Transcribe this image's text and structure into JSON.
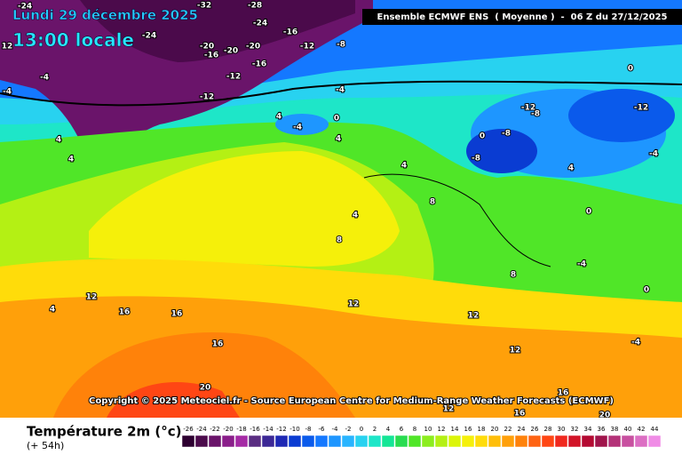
{
  "header": {
    "date": "Lundi 29 décembre 2025",
    "time": "13:00 locale",
    "model": "Ensemble ECMWF ENS  ( Moyenne )  -  06 Z du 27/12/2025"
  },
  "copyright": "Copyright © 2025 Meteociel.fr - Source European Centre for Medium-Range Weather Forecasts (ECMWF)",
  "map": {
    "labels": [
      "-24",
      "-32",
      "-28",
      "-24",
      "-24",
      "-20",
      "-16",
      "-20",
      "-20",
      "-16",
      "-12",
      "-8",
      "-16",
      "-12",
      "-12",
      "-4",
      "0",
      "4",
      "-4",
      "4",
      "4",
      "-4",
      "4",
      "4",
      "8",
      "4",
      "8",
      "12",
      "4",
      "16",
      "16",
      "16",
      "20",
      "12",
      "12",
      "8",
      "-12",
      "-8",
      "0",
      "-8",
      "-8",
      "0",
      "-12",
      "-4",
      "0",
      "4",
      "-4",
      "0",
      "-4",
      "12",
      "16",
      "20",
      "16",
      "12",
      "12",
      "-4"
    ]
  },
  "legend": {
    "title": "Température 2m (°c)",
    "lead": "(+ 54h)",
    "ticks": [
      -26,
      -24,
      -22,
      -20,
      -18,
      -16,
      -14,
      -12,
      -10,
      -8,
      -6,
      -4,
      -2,
      0,
      2,
      4,
      6,
      8,
      10,
      12,
      14,
      16,
      18,
      20,
      22,
      24,
      26,
      28,
      30,
      32,
      34,
      36,
      38,
      40,
      42,
      44
    ],
    "colors": [
      "#2d0030",
      "#4b0a4b",
      "#6a146a",
      "#8a1e8a",
      "#a52aa5",
      "#5a2d82",
      "#3c2896",
      "#1e28b4",
      "#0a3cd2",
      "#0a5aeb",
      "#1478ff",
      "#1e96ff",
      "#28b4ff",
      "#28d2f0",
      "#1ee6c8",
      "#14e696",
      "#28dc50",
      "#50e628",
      "#8ced1e",
      "#b4f014",
      "#dcf50a",
      "#f5f00a",
      "#ffdc0a",
      "#ffbe0a",
      "#ffa00a",
      "#ff820a",
      "#ff6414",
      "#ff4614",
      "#f0281e",
      "#d21428",
      "#b40a32",
      "#a0144b",
      "#b43278",
      "#c850a0",
      "#dc6ec3",
      "#f08ce6"
    ]
  }
}
